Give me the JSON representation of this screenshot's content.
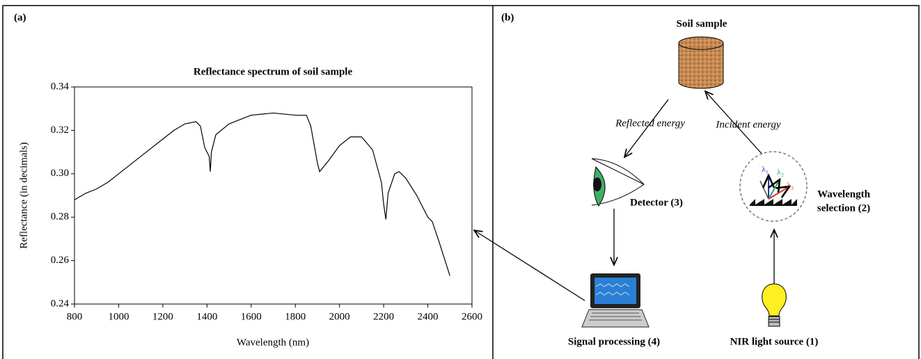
{
  "panels": {
    "a": "(a)",
    "b": "(b)"
  },
  "chart_data": {
    "type": "line",
    "title": "Reflectance spectrum of soil sample",
    "x_label": "Wavelength (nm)",
    "y_label": "Reflectance (in decimals)",
    "x": [
      800,
      850,
      900,
      950,
      1000,
      1100,
      1200,
      1250,
      1300,
      1350,
      1370,
      1390,
      1410,
      1415,
      1420,
      1440,
      1500,
      1600,
      1700,
      1800,
      1850,
      1870,
      1900,
      1910,
      1950,
      2000,
      2050,
      2100,
      2150,
      2190,
      2200,
      2210,
      2220,
      2250,
      2270,
      2300,
      2350,
      2400,
      2420,
      2450,
      2500
    ],
    "series": [
      {
        "color": "#000000",
        "values": [
          0.288,
          0.291,
          0.293,
          0.296,
          0.3,
          0.308,
          0.316,
          0.32,
          0.323,
          0.324,
          0.322,
          0.312,
          0.308,
          0.301,
          0.31,
          0.318,
          0.323,
          0.327,
          0.328,
          0.327,
          0.327,
          0.322,
          0.305,
          0.301,
          0.306,
          0.313,
          0.317,
          0.317,
          0.311,
          0.296,
          0.286,
          0.279,
          0.291,
          0.3,
          0.301,
          0.298,
          0.29,
          0.28,
          0.278,
          0.269,
          0.253
        ]
      }
    ],
    "xlim": [
      800,
      2600
    ],
    "xticks": [
      800,
      1000,
      1200,
      1400,
      1600,
      1800,
      2000,
      2200,
      2400,
      2600
    ],
    "ylim": [
      0.24,
      0.34
    ],
    "yticks": [
      0.24,
      0.26,
      0.28,
      {
        "value": 0.3,
        "label": "0.30"
      },
      0.32,
      0.34
    ],
    "grid": false
  },
  "diagram": {
    "soil_sample": "Soil sample",
    "reflected": "Reflected energy",
    "incident": "Incident energy",
    "detector": "Detector (3)",
    "wavelength_selection": [
      "Wavelength",
      "selection (2)"
    ],
    "lambdas": [
      "λ₁",
      "λ₂",
      "λ₃"
    ],
    "signal_processing": "Signal processing (4)",
    "light_source": "NIR light source (1)"
  }
}
